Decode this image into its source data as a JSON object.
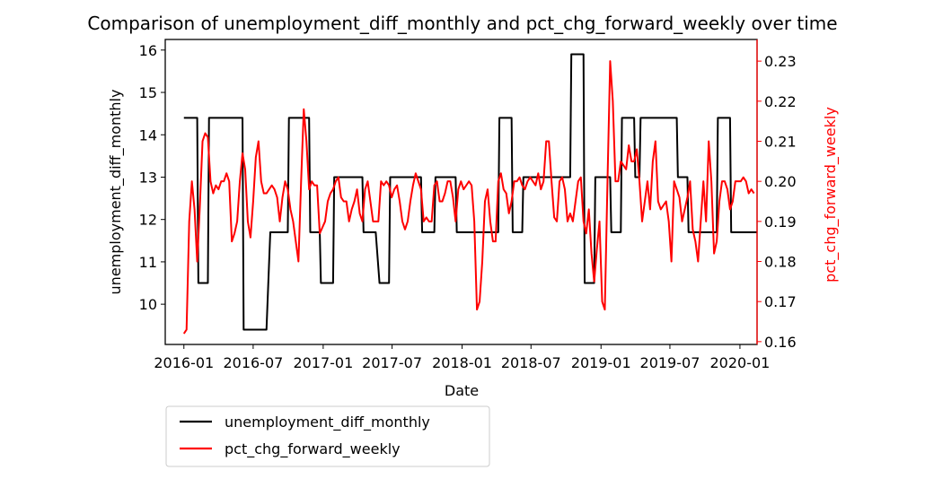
{
  "chart_data": {
    "type": "line",
    "title": "Comparison of unemployment_diff_monthly and pct_chg_forward_weekly over time",
    "xlabel": "Date",
    "ylabel_left": "unemployment_diff_monthly",
    "ylabel_right": "pct_chg_forward_weekly",
    "xlim": [
      "2015-11-13",
      "2020-02-15"
    ],
    "ylim_left": [
      9.05,
      16.25
    ],
    "ylim_right": [
      0.1593,
      0.2354
    ],
    "x_ticks": [
      "2016-01",
      "2016-07",
      "2017-01",
      "2017-07",
      "2018-01",
      "2018-07",
      "2019-01",
      "2019-07",
      "2020-01"
    ],
    "y_ticks_left": [
      "10",
      "11",
      "12",
      "13",
      "14",
      "15",
      "16"
    ],
    "y_ticks_right": [
      "0.16",
      "0.17",
      "0.18",
      "0.19",
      "0.20",
      "0.21",
      "0.22",
      "0.23"
    ],
    "grid": false,
    "legend_position": "below-left",
    "colors": {
      "left_axis": "#000000",
      "right_axis": "#ff0000"
    },
    "series": [
      {
        "name": "unemployment_diff_monthly",
        "axis": "left",
        "color": "#000000",
        "points": [
          [
            "2016-01-01",
            14.4
          ],
          [
            "2016-02-05",
            14.4
          ],
          [
            "2016-02-08",
            10.5
          ],
          [
            "2016-03-04",
            10.5
          ],
          [
            "2016-03-07",
            14.4
          ],
          [
            "2016-06-03",
            14.4
          ],
          [
            "2016-06-06",
            9.4
          ],
          [
            "2016-08-05",
            9.4
          ],
          [
            "2016-08-15",
            11.7
          ],
          [
            "2016-09-30",
            11.7
          ],
          [
            "2016-10-03",
            14.4
          ],
          [
            "2016-11-25",
            14.4
          ],
          [
            "2016-11-28",
            11.7
          ],
          [
            "2016-12-23",
            11.7
          ],
          [
            "2016-12-26",
            10.5
          ],
          [
            "2017-01-27",
            10.5
          ],
          [
            "2017-01-30",
            13.0
          ],
          [
            "2017-04-14",
            13.0
          ],
          [
            "2017-04-17",
            11.7
          ],
          [
            "2017-05-19",
            11.7
          ],
          [
            "2017-05-29",
            10.5
          ],
          [
            "2017-06-23",
            10.5
          ],
          [
            "2017-06-26",
            13.0
          ],
          [
            "2017-09-15",
            13.0
          ],
          [
            "2017-09-18",
            11.7
          ],
          [
            "2017-10-20",
            11.7
          ],
          [
            "2017-10-23",
            13.0
          ],
          [
            "2017-12-15",
            13.0
          ],
          [
            "2017-12-18",
            11.7
          ],
          [
            "2018-04-06",
            11.7
          ],
          [
            "2018-04-09",
            14.4
          ],
          [
            "2018-05-11",
            14.4
          ],
          [
            "2018-05-14",
            11.7
          ],
          [
            "2018-06-08",
            11.7
          ],
          [
            "2018-06-11",
            13.0
          ],
          [
            "2018-10-12",
            13.0
          ],
          [
            "2018-10-15",
            15.9
          ],
          [
            "2018-11-16",
            15.9
          ],
          [
            "2018-11-19",
            10.5
          ],
          [
            "2018-12-14",
            10.5
          ],
          [
            "2018-12-17",
            13.0
          ],
          [
            "2019-01-25",
            13.0
          ],
          [
            "2019-01-28",
            11.7
          ],
          [
            "2019-02-22",
            11.7
          ],
          [
            "2019-02-25",
            14.4
          ],
          [
            "2019-03-29",
            14.4
          ],
          [
            "2019-04-01",
            13.0
          ],
          [
            "2019-04-12",
            13.0
          ],
          [
            "2019-04-15",
            14.4
          ],
          [
            "2019-07-19",
            14.4
          ],
          [
            "2019-07-22",
            13.0
          ],
          [
            "2019-08-16",
            13.0
          ],
          [
            "2019-08-19",
            11.7
          ],
          [
            "2019-11-01",
            11.7
          ],
          [
            "2019-11-04",
            14.4
          ],
          [
            "2019-12-06",
            14.4
          ],
          [
            "2019-12-09",
            11.7
          ],
          [
            "2020-02-14",
            11.7
          ]
        ]
      },
      {
        "name": "pct_chg_forward_weekly",
        "axis": "right",
        "color": "#ff0000",
        "points": [
          [
            "2016-01-01",
            0.162
          ],
          [
            "2016-01-08",
            0.163
          ],
          [
            "2016-01-15",
            0.19
          ],
          [
            "2016-01-22",
            0.2
          ],
          [
            "2016-01-29",
            0.193
          ],
          [
            "2016-02-05",
            0.18
          ],
          [
            "2016-02-12",
            0.194
          ],
          [
            "2016-02-19",
            0.21
          ],
          [
            "2016-02-26",
            0.212
          ],
          [
            "2016-03-04",
            0.211
          ],
          [
            "2016-03-11",
            0.2
          ],
          [
            "2016-03-18",
            0.197
          ],
          [
            "2016-03-25",
            0.199
          ],
          [
            "2016-04-01",
            0.198
          ],
          [
            "2016-04-08",
            0.2
          ],
          [
            "2016-04-15",
            0.2
          ],
          [
            "2016-04-22",
            0.202
          ],
          [
            "2016-04-29",
            0.2
          ],
          [
            "2016-05-06",
            0.185
          ],
          [
            "2016-05-13",
            0.187
          ],
          [
            "2016-05-20",
            0.19
          ],
          [
            "2016-05-27",
            0.2
          ],
          [
            "2016-06-03",
            0.207
          ],
          [
            "2016-06-10",
            0.203
          ],
          [
            "2016-06-17",
            0.19
          ],
          [
            "2016-06-24",
            0.186
          ],
          [
            "2016-07-01",
            0.195
          ],
          [
            "2016-07-08",
            0.206
          ],
          [
            "2016-07-15",
            0.21
          ],
          [
            "2016-07-22",
            0.2
          ],
          [
            "2016-07-29",
            0.197
          ],
          [
            "2016-08-05",
            0.197
          ],
          [
            "2016-08-12",
            0.198
          ],
          [
            "2016-08-19",
            0.199
          ],
          [
            "2016-08-26",
            0.198
          ],
          [
            "2016-09-02",
            0.196
          ],
          [
            "2016-09-09",
            0.19
          ],
          [
            "2016-09-16",
            0.196
          ],
          [
            "2016-09-23",
            0.2
          ],
          [
            "2016-09-30",
            0.198
          ],
          [
            "2016-10-07",
            0.193
          ],
          [
            "2016-10-14",
            0.19
          ],
          [
            "2016-10-21",
            0.185
          ],
          [
            "2016-10-28",
            0.18
          ],
          [
            "2016-11-04",
            0.2
          ],
          [
            "2016-11-11",
            0.218
          ],
          [
            "2016-11-18",
            0.21
          ],
          [
            "2016-11-25",
            0.198
          ],
          [
            "2016-12-02",
            0.2
          ],
          [
            "2016-12-09",
            0.199
          ],
          [
            "2016-12-16",
            0.199
          ],
          [
            "2016-12-23",
            0.187
          ],
          [
            "2017-01-06",
            0.19
          ],
          [
            "2017-01-13",
            0.195
          ],
          [
            "2017-01-20",
            0.197
          ],
          [
            "2017-01-27",
            0.198
          ],
          [
            "2017-02-03",
            0.2
          ],
          [
            "2017-02-10",
            0.201
          ],
          [
            "2017-02-17",
            0.196
          ],
          [
            "2017-02-24",
            0.195
          ],
          [
            "2017-03-03",
            0.195
          ],
          [
            "2017-03-10",
            0.19
          ],
          [
            "2017-03-17",
            0.193
          ],
          [
            "2017-03-24",
            0.195
          ],
          [
            "2017-03-31",
            0.198
          ],
          [
            "2017-04-07",
            0.192
          ],
          [
            "2017-04-14",
            0.19
          ],
          [
            "2017-04-21",
            0.198
          ],
          [
            "2017-04-28",
            0.2
          ],
          [
            "2017-05-05",
            0.195
          ],
          [
            "2017-05-12",
            0.19
          ],
          [
            "2017-05-19",
            0.19
          ],
          [
            "2017-05-26",
            0.19
          ],
          [
            "2017-06-02",
            0.2
          ],
          [
            "2017-06-09",
            0.199
          ],
          [
            "2017-06-16",
            0.2
          ],
          [
            "2017-06-23",
            0.199
          ],
          [
            "2017-06-30",
            0.196
          ],
          [
            "2017-07-07",
            0.198
          ],
          [
            "2017-07-14",
            0.199
          ],
          [
            "2017-07-21",
            0.195
          ],
          [
            "2017-07-28",
            0.19
          ],
          [
            "2017-08-04",
            0.188
          ],
          [
            "2017-08-11",
            0.19
          ],
          [
            "2017-08-18",
            0.195
          ],
          [
            "2017-08-25",
            0.199
          ],
          [
            "2017-09-01",
            0.202
          ],
          [
            "2017-09-08",
            0.2
          ],
          [
            "2017-09-15",
            0.198
          ],
          [
            "2017-09-22",
            0.19
          ],
          [
            "2017-09-29",
            0.191
          ],
          [
            "2017-10-06",
            0.19
          ],
          [
            "2017-10-13",
            0.19
          ],
          [
            "2017-10-20",
            0.199
          ],
          [
            "2017-10-27",
            0.2
          ],
          [
            "2017-11-03",
            0.195
          ],
          [
            "2017-11-10",
            0.195
          ],
          [
            "2017-11-17",
            0.197
          ],
          [
            "2017-11-24",
            0.2
          ],
          [
            "2017-12-01",
            0.2
          ],
          [
            "2017-12-08",
            0.196
          ],
          [
            "2017-12-15",
            0.19
          ],
          [
            "2017-12-22",
            0.198
          ],
          [
            "2017-12-29",
            0.2
          ],
          [
            "2018-01-05",
            0.198
          ],
          [
            "2018-01-12",
            0.199
          ],
          [
            "2018-01-19",
            0.2
          ],
          [
            "2018-01-26",
            0.199
          ],
          [
            "2018-02-02",
            0.19
          ],
          [
            "2018-02-09",
            0.168
          ],
          [
            "2018-02-16",
            0.17
          ],
          [
            "2018-02-23",
            0.18
          ],
          [
            "2018-03-02",
            0.195
          ],
          [
            "2018-03-09",
            0.198
          ],
          [
            "2018-03-16",
            0.19
          ],
          [
            "2018-03-23",
            0.185
          ],
          [
            "2018-03-30",
            0.185
          ],
          [
            "2018-04-06",
            0.2
          ],
          [
            "2018-04-13",
            0.202
          ],
          [
            "2018-04-20",
            0.198
          ],
          [
            "2018-04-27",
            0.197
          ],
          [
            "2018-05-04",
            0.192
          ],
          [
            "2018-05-11",
            0.195
          ],
          [
            "2018-05-18",
            0.2
          ],
          [
            "2018-05-25",
            0.2
          ],
          [
            "2018-06-01",
            0.201
          ],
          [
            "2018-06-08",
            0.199
          ],
          [
            "2018-06-15",
            0.198
          ],
          [
            "2018-06-22",
            0.2
          ],
          [
            "2018-06-29",
            0.201
          ],
          [
            "2018-07-06",
            0.2
          ],
          [
            "2018-07-13",
            0.199
          ],
          [
            "2018-07-20",
            0.202
          ],
          [
            "2018-07-27",
            0.198
          ],
          [
            "2018-08-03",
            0.2
          ],
          [
            "2018-08-10",
            0.21
          ],
          [
            "2018-08-17",
            0.21
          ],
          [
            "2018-08-24",
            0.2
          ],
          [
            "2018-08-31",
            0.191
          ],
          [
            "2018-09-07",
            0.19
          ],
          [
            "2018-09-14",
            0.2
          ],
          [
            "2018-09-21",
            0.201
          ],
          [
            "2018-09-28",
            0.198
          ],
          [
            "2018-10-05",
            0.19
          ],
          [
            "2018-10-12",
            0.192
          ],
          [
            "2018-10-19",
            0.19
          ],
          [
            "2018-10-26",
            0.195
          ],
          [
            "2018-11-02",
            0.2
          ],
          [
            "2018-11-09",
            0.201
          ],
          [
            "2018-11-16",
            0.19
          ],
          [
            "2018-11-23",
            0.187
          ],
          [
            "2018-11-30",
            0.193
          ],
          [
            "2018-12-07",
            0.182
          ],
          [
            "2018-12-14",
            0.175
          ],
          [
            "2018-12-21",
            0.183
          ],
          [
            "2018-12-28",
            0.19
          ],
          [
            "2019-01-04",
            0.17
          ],
          [
            "2019-01-11",
            0.168
          ],
          [
            "2019-01-18",
            0.2
          ],
          [
            "2019-01-25",
            0.23
          ],
          [
            "2019-02-01",
            0.22
          ],
          [
            "2019-02-08",
            0.2
          ],
          [
            "2019-02-15",
            0.2
          ],
          [
            "2019-02-22",
            0.205
          ],
          [
            "2019-03-01",
            0.204
          ],
          [
            "2019-03-08",
            0.203
          ],
          [
            "2019-03-15",
            0.209
          ],
          [
            "2019-03-22",
            0.205
          ],
          [
            "2019-03-29",
            0.205
          ],
          [
            "2019-04-05",
            0.208
          ],
          [
            "2019-04-12",
            0.2
          ],
          [
            "2019-04-19",
            0.19
          ],
          [
            "2019-04-26",
            0.195
          ],
          [
            "2019-05-03",
            0.2
          ],
          [
            "2019-05-10",
            0.193
          ],
          [
            "2019-05-17",
            0.205
          ],
          [
            "2019-05-24",
            0.21
          ],
          [
            "2019-05-31",
            0.195
          ],
          [
            "2019-06-07",
            0.193
          ],
          [
            "2019-06-14",
            0.194
          ],
          [
            "2019-06-21",
            0.195
          ],
          [
            "2019-06-28",
            0.19
          ],
          [
            "2019-07-05",
            0.18
          ],
          [
            "2019-07-12",
            0.2
          ],
          [
            "2019-07-19",
            0.198
          ],
          [
            "2019-07-26",
            0.196
          ],
          [
            "2019-08-02",
            0.19
          ],
          [
            "2019-08-09",
            0.193
          ],
          [
            "2019-08-16",
            0.196
          ],
          [
            "2019-08-23",
            0.2
          ],
          [
            "2019-08-30",
            0.188
          ],
          [
            "2019-09-06",
            0.185
          ],
          [
            "2019-09-13",
            0.18
          ],
          [
            "2019-09-20",
            0.19
          ],
          [
            "2019-09-27",
            0.2
          ],
          [
            "2019-10-04",
            0.19
          ],
          [
            "2019-10-11",
            0.21
          ],
          [
            "2019-10-18",
            0.2
          ],
          [
            "2019-10-25",
            0.182
          ],
          [
            "2019-11-01",
            0.185
          ],
          [
            "2019-11-08",
            0.195
          ],
          [
            "2019-11-15",
            0.2
          ],
          [
            "2019-11-22",
            0.2
          ],
          [
            "2019-11-29",
            0.198
          ],
          [
            "2019-12-06",
            0.193
          ],
          [
            "2019-12-13",
            0.195
          ],
          [
            "2019-12-20",
            0.2
          ],
          [
            "2019-12-27",
            0.2
          ],
          [
            "2020-01-03",
            0.2
          ],
          [
            "2020-01-10",
            0.201
          ],
          [
            "2020-01-17",
            0.2
          ],
          [
            "2020-01-24",
            0.197
          ],
          [
            "2020-01-31",
            0.198
          ],
          [
            "2020-02-07",
            0.197
          ]
        ]
      }
    ]
  }
}
